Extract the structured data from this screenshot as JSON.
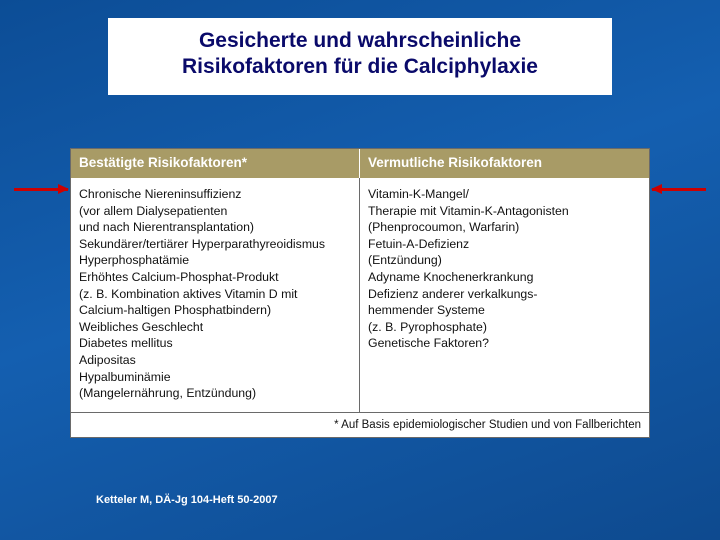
{
  "colors": {
    "slide_bg_start": "#0c4d96",
    "slide_bg_mid": "#145fb0",
    "slide_bg_end": "#0e4a8f",
    "title_bg": "#ffffff",
    "title_text": "#0a0a6a",
    "table_header_bg": "#a89b66",
    "table_header_text": "#ffffff",
    "table_border": "#6a6a6a",
    "body_text": "#111111",
    "arrow": "#cc0000",
    "citation_text": "#ffffff"
  },
  "typography": {
    "title_font": "Verdana",
    "title_size_pt": 16,
    "title_weight": "700",
    "header_font": "Arial",
    "header_size_pt": 10,
    "header_weight": "700",
    "body_font": "Arial",
    "body_size_pt": 9,
    "citation_font": "Verdana",
    "citation_size_pt": 8,
    "citation_weight": "700"
  },
  "title": {
    "line1": "Gesicherte und wahrscheinliche",
    "line2": "Risikofaktoren für die Calciphylaxie"
  },
  "table": {
    "headers": {
      "col1": "Bestätigte Risikofaktoren*",
      "col2": "Vermutliche Risikofaktoren"
    },
    "col1_lines": [
      "Chronische Niereninsuffizienz",
      "(vor allem Dialysepatienten",
      "und nach Nierentransplantation)",
      "Sekundärer/tertiärer Hyperparathyreoidismus",
      "Hyperphosphatämie",
      "Erhöhtes Calcium-Phosphat-Produkt",
      "(z. B. Kombination aktives Vitamin D mit",
      "Calcium-haltigen Phosphatbindern)",
      "Weibliches Geschlecht",
      "Diabetes mellitus",
      "Adipositas",
      "Hypalbuminämie",
      "(Mangelernährung, Entzündung)"
    ],
    "col2_lines": [
      "Vitamin-K-Mangel/",
      "Therapie mit Vitamin-K-Antagonisten",
      "(Phenprocoumon, Warfarin)",
      "Fetuin-A-Defizienz",
      "(Entzündung)",
      "Adyname Knochenerkrankung",
      "Defizienz anderer verkalkungs-",
      "hemmender Systeme",
      "(z. B. Pyrophosphate)",
      "Genetische Faktoren?"
    ],
    "footnote": "* Auf Basis epidemiologischer Studien und von Fallberichten"
  },
  "citation": "Ketteler M, DÄ-Jg 104-Heft 50-2007",
  "annotations": {
    "left_arrow": {
      "direction": "right",
      "target": "col1-first-line"
    },
    "right_arrow": {
      "direction": "left",
      "target": "col2-first-line"
    }
  }
}
